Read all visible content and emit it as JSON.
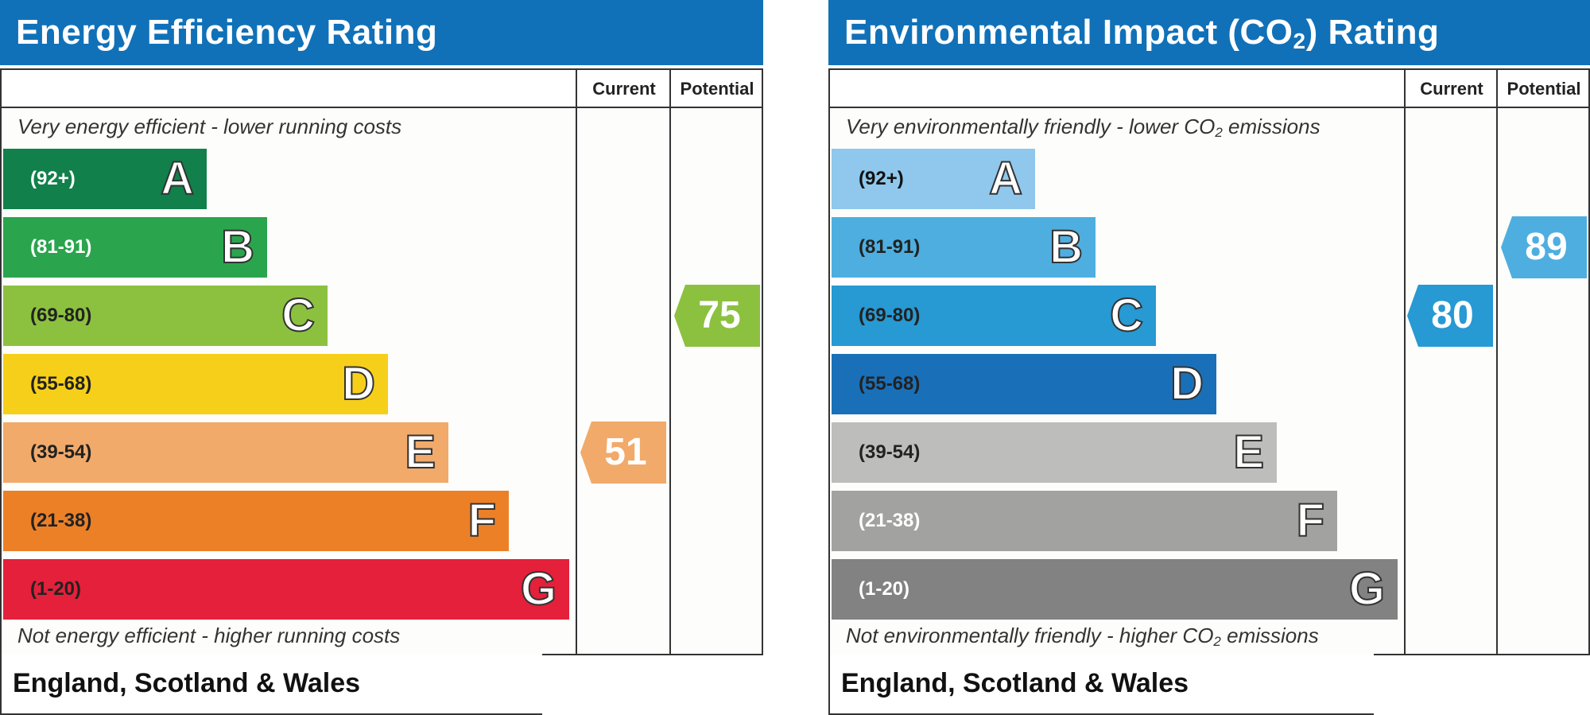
{
  "chart_data": [
    {
      "type": "bar",
      "title": "Energy Efficiency Rating",
      "columns": [
        "Current",
        "Potential"
      ],
      "top_caption": "Very energy efficient - lower running costs",
      "bottom_caption": "Not energy efficient - higher running costs",
      "footer": "England, Scotland & Wales",
      "bands": [
        {
          "letter": "A",
          "range": "(92+)",
          "color": "#11804a",
          "text_color": "#ffffff"
        },
        {
          "letter": "B",
          "range": "(81-91)",
          "color": "#2aa54d",
          "text_color": "#ffffff"
        },
        {
          "letter": "C",
          "range": "(69-80)",
          "color": "#8cc13f",
          "text_color": "#222222"
        },
        {
          "letter": "D",
          "range": "(55-68)",
          "color": "#f6cf1a",
          "text_color": "#222222"
        },
        {
          "letter": "E",
          "range": "(39-54)",
          "color": "#f1aa6a",
          "text_color": "#222222"
        },
        {
          "letter": "F",
          "range": "(21-38)",
          "color": "#ec8027",
          "text_color": "#222222"
        },
        {
          "letter": "G",
          "range": "(1-20)",
          "color": "#e4203a",
          "text_color": "#222222"
        }
      ],
      "current": {
        "value": 51,
        "band": "E",
        "color": "#f1aa6a"
      },
      "potential": {
        "value": 75,
        "band": "C",
        "color": "#8cc13f"
      }
    },
    {
      "type": "bar",
      "title_parts": [
        "Environmental Impact (CO",
        "2",
        ") Rating"
      ],
      "columns": [
        "Current",
        "Potential"
      ],
      "top_caption_parts": [
        "Very environmentally friendly - lower CO",
        "2",
        " emissions"
      ],
      "bottom_caption_parts": [
        "Not environmentally friendly - higher CO",
        "2",
        " emissions"
      ],
      "footer": "England, Scotland & Wales",
      "bands": [
        {
          "letter": "A",
          "range": "(92+)",
          "color": "#8fc8ec",
          "text_color": "#111111"
        },
        {
          "letter": "B",
          "range": "(81-91)",
          "color": "#4eaee0",
          "text_color": "#222222"
        },
        {
          "letter": "C",
          "range": "(69-80)",
          "color": "#2799d3",
          "text_color": "#222222"
        },
        {
          "letter": "D",
          "range": "(55-68)",
          "color": "#1a70b8",
          "text_color": "#222222"
        },
        {
          "letter": "E",
          "range": "(39-54)",
          "color": "#bdbdbb",
          "text_color": "#222222"
        },
        {
          "letter": "F",
          "range": "(21-38)",
          "color": "#a2a2a0",
          "text_color": "#ffffff"
        },
        {
          "letter": "G",
          "range": "(1-20)",
          "color": "#828282",
          "text_color": "#ffffff"
        }
      ],
      "current": {
        "value": 80,
        "band": "C",
        "color": "#2799d3"
      },
      "potential": {
        "value": 89,
        "band": "B",
        "color": "#4eaee0"
      }
    }
  ]
}
